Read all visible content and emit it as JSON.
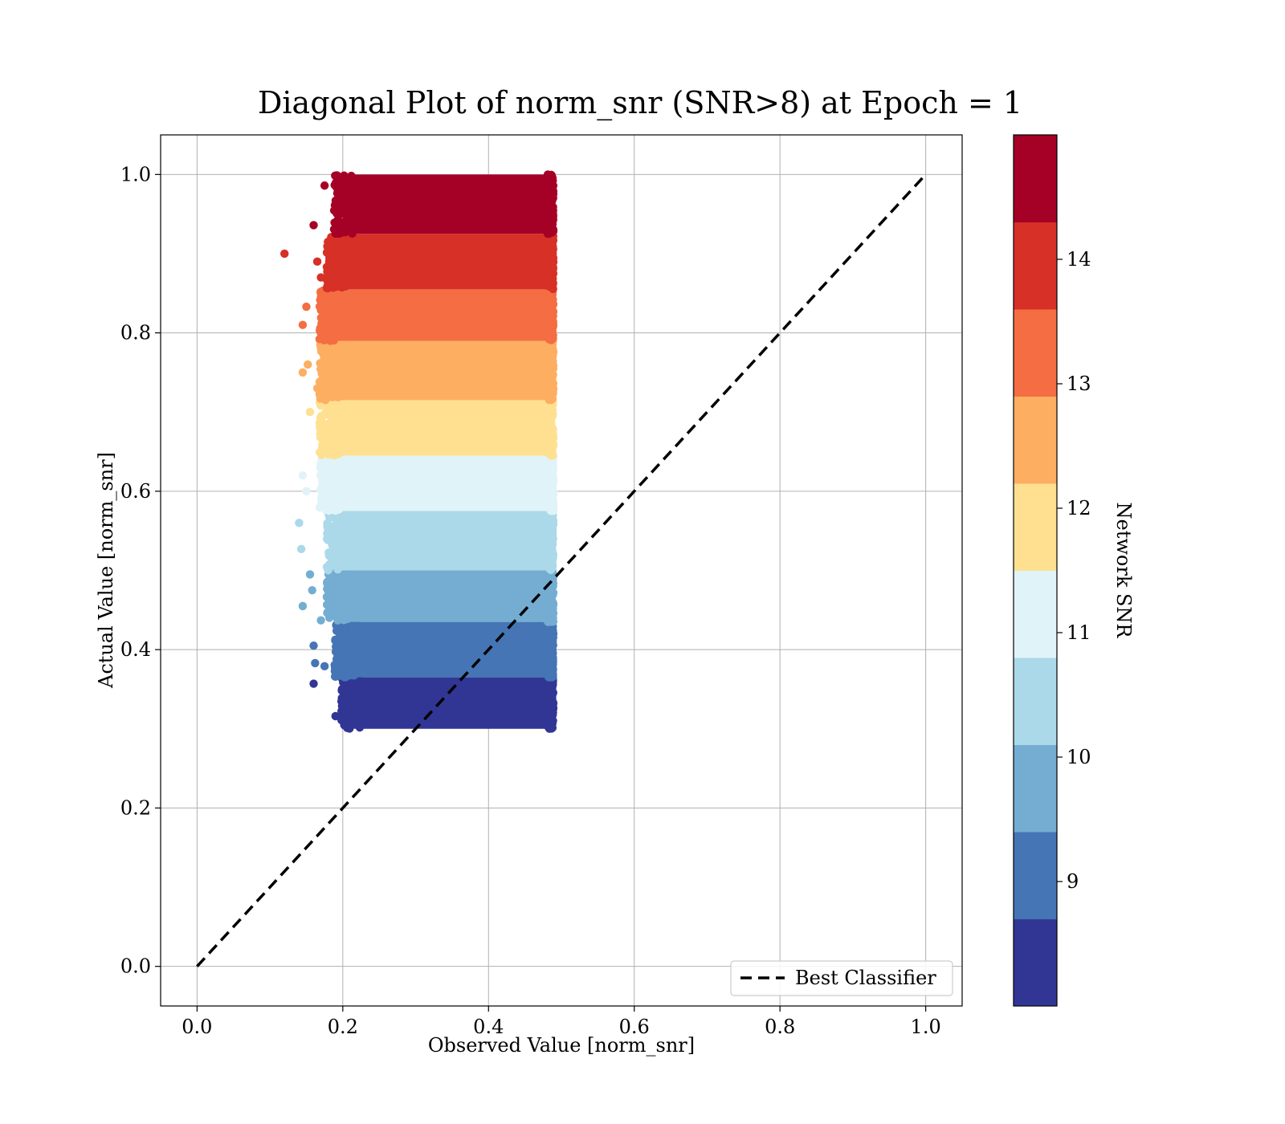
{
  "chart_data": {
    "type": "scatter",
    "title": "Diagonal Plot of norm_snr (SNR>8) at Epoch = 1",
    "xlabel": "Observed Value [norm_snr]",
    "ylabel": "Actual Value [norm_snr]",
    "xlim": [
      -0.05,
      1.05
    ],
    "ylim": [
      -0.05,
      1.05
    ],
    "xticks": [
      "0.0",
      "0.2",
      "0.4",
      "0.6",
      "0.8",
      "1.0"
    ],
    "yticks": [
      "0.0",
      "0.2",
      "0.4",
      "0.6",
      "0.8",
      "1.0"
    ],
    "grid": true,
    "legend": {
      "position": "lower-right",
      "label": "Best Classifier"
    },
    "reference_line": {
      "name": "Best Classifier",
      "x": [
        0.0,
        1.0
      ],
      "y": [
        0.0,
        1.0
      ],
      "style": "dashed",
      "color": "#000000"
    },
    "scatter_bands": [
      {
        "y_range": [
          0.3,
          0.365
        ],
        "x_range": [
          0.21,
          0.485
        ],
        "snr": 8.5,
        "color": "#313695"
      },
      {
        "y_range": [
          0.365,
          0.435
        ],
        "x_range": [
          0.2,
          0.485
        ],
        "snr": 9.0,
        "color": "#4575b4"
      },
      {
        "y_range": [
          0.435,
          0.5
        ],
        "x_range": [
          0.19,
          0.485
        ],
        "snr": 9.7,
        "color": "#74add1"
      },
      {
        "y_range": [
          0.5,
          0.575
        ],
        "x_range": [
          0.19,
          0.485
        ],
        "snr": 10.4,
        "color": "#abd9e9"
      },
      {
        "y_range": [
          0.575,
          0.645
        ],
        "x_range": [
          0.18,
          0.485
        ],
        "snr": 11.1,
        "color": "#e0f3f8"
      },
      {
        "y_range": [
          0.645,
          0.715
        ],
        "x_range": [
          0.18,
          0.485
        ],
        "snr": 11.8,
        "color": "#fee090"
      },
      {
        "y_range": [
          0.715,
          0.79
        ],
        "x_range": [
          0.18,
          0.485
        ],
        "snr": 12.5,
        "color": "#fdae61"
      },
      {
        "y_range": [
          0.79,
          0.855
        ],
        "x_range": [
          0.18,
          0.485
        ],
        "snr": 13.2,
        "color": "#f46d43"
      },
      {
        "y_range": [
          0.855,
          0.925
        ],
        "x_range": [
          0.19,
          0.485
        ],
        "snr": 13.9,
        "color": "#d73027"
      },
      {
        "y_range": [
          0.925,
          1.0
        ],
        "x_range": [
          0.2,
          0.485
        ],
        "snr": 14.6,
        "color": "#a50026"
      }
    ],
    "outliers": [
      {
        "x": 0.12,
        "y": 0.9
      },
      {
        "x": 0.16,
        "y": 0.936
      },
      {
        "x": 0.145,
        "y": 0.81
      },
      {
        "x": 0.15,
        "y": 0.833
      },
      {
        "x": 0.145,
        "y": 0.75
      },
      {
        "x": 0.152,
        "y": 0.76
      },
      {
        "x": 0.155,
        "y": 0.7
      },
      {
        "x": 0.14,
        "y": 0.56
      },
      {
        "x": 0.143,
        "y": 0.527
      },
      {
        "x": 0.155,
        "y": 0.495
      },
      {
        "x": 0.145,
        "y": 0.455
      },
      {
        "x": 0.158,
        "y": 0.475
      },
      {
        "x": 0.16,
        "y": 0.405
      },
      {
        "x": 0.162,
        "y": 0.383
      },
      {
        "x": 0.16,
        "y": 0.357
      },
      {
        "x": 0.17,
        "y": 0.437
      },
      {
        "x": 0.175,
        "y": 0.379
      },
      {
        "x": 0.19,
        "y": 0.316
      },
      {
        "x": 0.145,
        "y": 0.62
      },
      {
        "x": 0.15,
        "y": 0.6
      },
      {
        "x": 0.165,
        "y": 0.73
      },
      {
        "x": 0.17,
        "y": 0.87
      },
      {
        "x": 0.165,
        "y": 0.89
      },
      {
        "x": 0.175,
        "y": 0.986
      }
    ],
    "colorbar": {
      "label": "Network SNR",
      "range": [
        8,
        15
      ],
      "ticks": [
        "9",
        "10",
        "11",
        "12",
        "13",
        "14"
      ],
      "tick_values": [
        9,
        10,
        11,
        12,
        13,
        14
      ],
      "colors": [
        "#313695",
        "#4575b4",
        "#74add1",
        "#abd9e9",
        "#e0f3f8",
        "#fee090",
        "#fdae61",
        "#f46d43",
        "#d73027",
        "#a50026"
      ]
    }
  }
}
